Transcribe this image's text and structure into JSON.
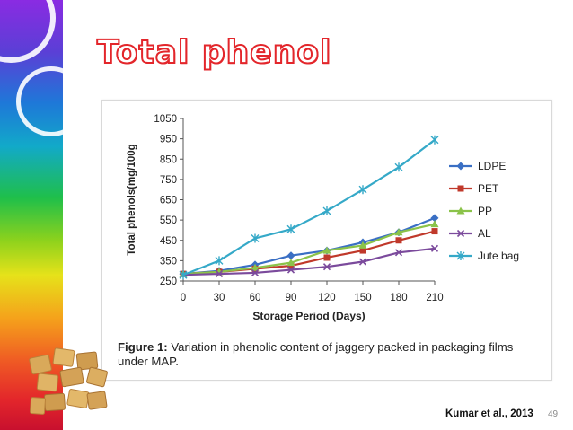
{
  "slide": {
    "title": "Total phenol",
    "citation": "Kumar et al., 2013",
    "slide_number": "49",
    "caption_lead": "Figure 1:",
    "caption_text": "Variation in phenolic content of jaggery packed in packaging films under MAP.",
    "colors": {
      "title_outline": "#e3262b",
      "card_border": "#d9d9d9"
    }
  },
  "chart_data": {
    "type": "line",
    "xlabel": "Storage Period (Days)",
    "ylabel": "Total phenols(mg/100g",
    "x": [
      0,
      30,
      60,
      90,
      120,
      150,
      180,
      210
    ],
    "xlim": [
      0,
      210
    ],
    "ylim": [
      250,
      1050
    ],
    "yticks": [
      250,
      350,
      450,
      550,
      650,
      750,
      850,
      950,
      1050
    ],
    "grid": false,
    "legend_position": "right",
    "series": [
      {
        "name": "LDPE",
        "color": "#3a6fc4",
        "marker": "diamond",
        "values": [
          285,
          300,
          330,
          375,
          400,
          440,
          490,
          560
        ]
      },
      {
        "name": "PET",
        "color": "#c0392b",
        "marker": "square",
        "values": [
          285,
          295,
          310,
          325,
          365,
          400,
          450,
          495
        ]
      },
      {
        "name": "PP",
        "color": "#8bc34a",
        "marker": "triangle",
        "values": [
          285,
          295,
          315,
          340,
          400,
          425,
          490,
          530
        ]
      },
      {
        "name": "AL",
        "color": "#7b4a9c",
        "marker": "x",
        "values": [
          280,
          285,
          290,
          305,
          320,
          345,
          390,
          410
        ]
      },
      {
        "name": "Jute bag",
        "color": "#35a9c8",
        "marker": "star",
        "values": [
          280,
          350,
          460,
          505,
          595,
          700,
          810,
          945
        ]
      }
    ]
  }
}
